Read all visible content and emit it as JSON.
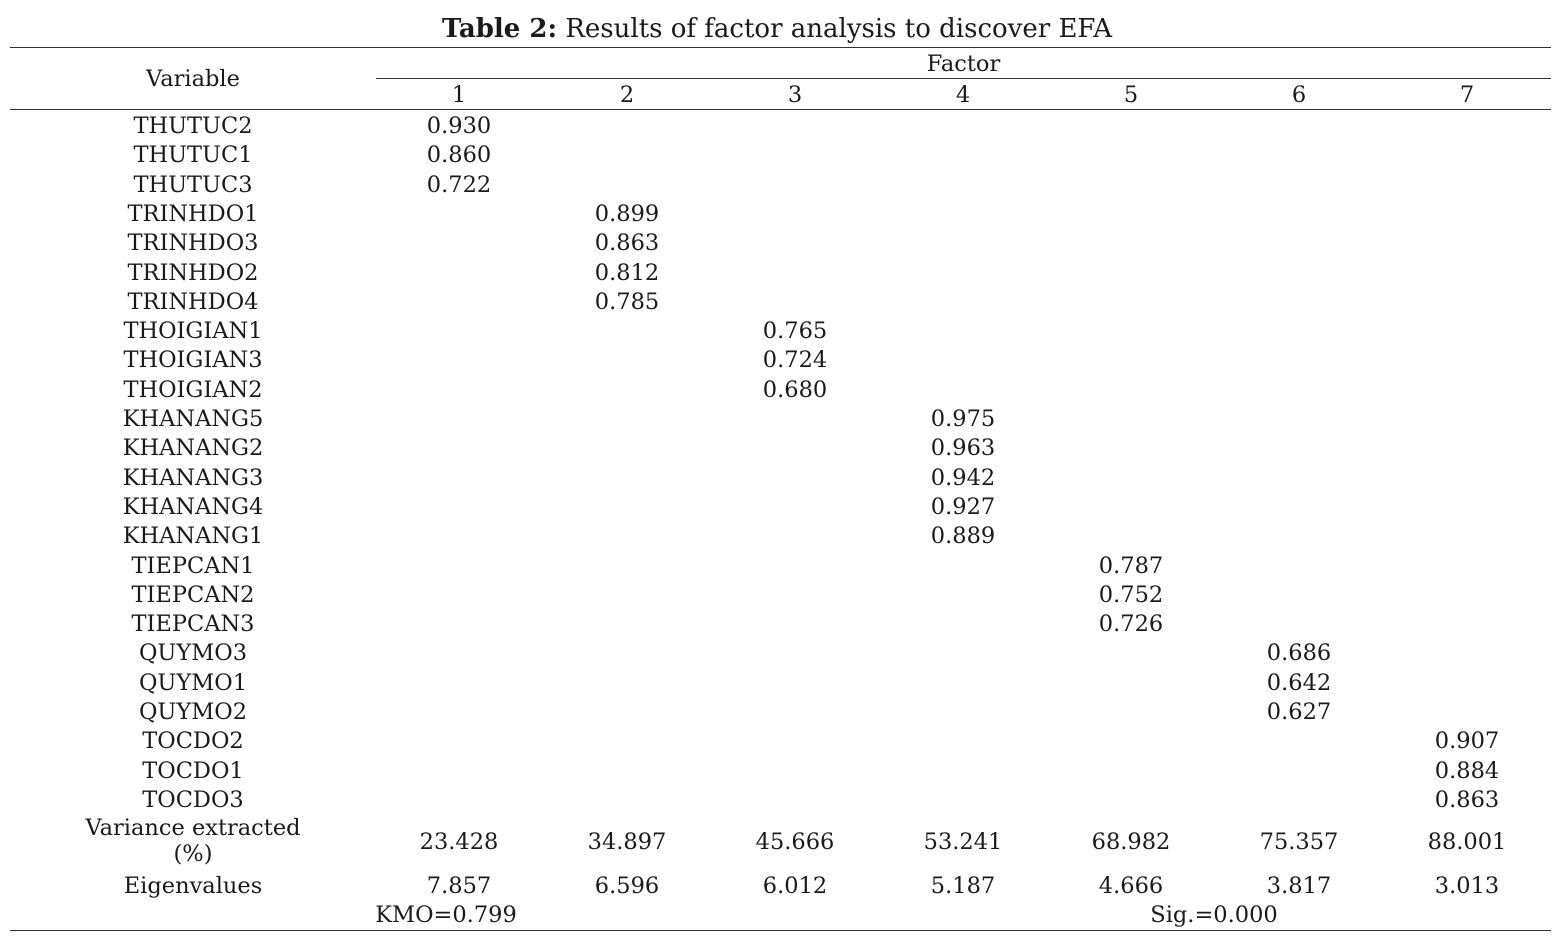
{
  "title": {
    "label": "Table 2:",
    "text": " Results of factor analysis to discover EFA"
  },
  "header": {
    "variable": "Variable",
    "factor": "Factor",
    "factor_numbers": [
      "1",
      "2",
      "3",
      "4",
      "5",
      "6",
      "7"
    ]
  },
  "rows": [
    {
      "name": "THUTUC2",
      "factor": 1,
      "value": "0.930"
    },
    {
      "name": "THUTUC1",
      "factor": 1,
      "value": "0.860"
    },
    {
      "name": "THUTUC3",
      "factor": 1,
      "value": "0.722"
    },
    {
      "name": "TRINHDO1",
      "factor": 2,
      "value": "0.899"
    },
    {
      "name": "TRINHDO3",
      "factor": 2,
      "value": "0.863"
    },
    {
      "name": "TRINHDO2",
      "factor": 2,
      "value": "0.812"
    },
    {
      "name": "TRINHDO4",
      "factor": 2,
      "value": "0.785"
    },
    {
      "name": "THOIGIAN1",
      "factor": 3,
      "value": "0.765"
    },
    {
      "name": "THOIGIAN3",
      "factor": 3,
      "value": "0.724"
    },
    {
      "name": "THOIGIAN2",
      "factor": 3,
      "value": "0.680"
    },
    {
      "name": "KHANANG5",
      "factor": 4,
      "value": "0.975"
    },
    {
      "name": "KHANANG2",
      "factor": 4,
      "value": "0.963"
    },
    {
      "name": "KHANANG3",
      "factor": 4,
      "value": "0.942"
    },
    {
      "name": "KHANANG4",
      "factor": 4,
      "value": "0.927"
    },
    {
      "name": "KHANANG1",
      "factor": 4,
      "value": "0.889"
    },
    {
      "name": "TIEPCAN1",
      "factor": 5,
      "value": "0.787"
    },
    {
      "name": "TIEPCAN2",
      "factor": 5,
      "value": "0.752"
    },
    {
      "name": "TIEPCAN3",
      "factor": 5,
      "value": "0.726"
    },
    {
      "name": "QUYMO3",
      "factor": 6,
      "value": "0.686"
    },
    {
      "name": "QUYMO1",
      "factor": 6,
      "value": "0.642"
    },
    {
      "name": "QUYMO2",
      "factor": 6,
      "value": "0.627"
    },
    {
      "name": "TOCDO2",
      "factor": 7,
      "value": "0.907"
    },
    {
      "name": "TOCDO1",
      "factor": 7,
      "value": "0.884"
    },
    {
      "name": "TOCDO3",
      "factor": 7,
      "value": "0.863"
    }
  ],
  "variance": {
    "label_line1": "Variance extracted",
    "label_line2": "(%)",
    "values": [
      "23.428",
      "34.897",
      "45.666",
      "53.241",
      "68.982",
      "75.357",
      "88.001"
    ]
  },
  "eigen": {
    "label": "Eigenvalues",
    "values": [
      "7.857",
      "6.596",
      "6.012",
      "5.187",
      "4.666",
      "3.817",
      "3.013"
    ]
  },
  "footer": {
    "kmo": "KMO=0.799",
    "sig": "Sig.=0.000"
  }
}
